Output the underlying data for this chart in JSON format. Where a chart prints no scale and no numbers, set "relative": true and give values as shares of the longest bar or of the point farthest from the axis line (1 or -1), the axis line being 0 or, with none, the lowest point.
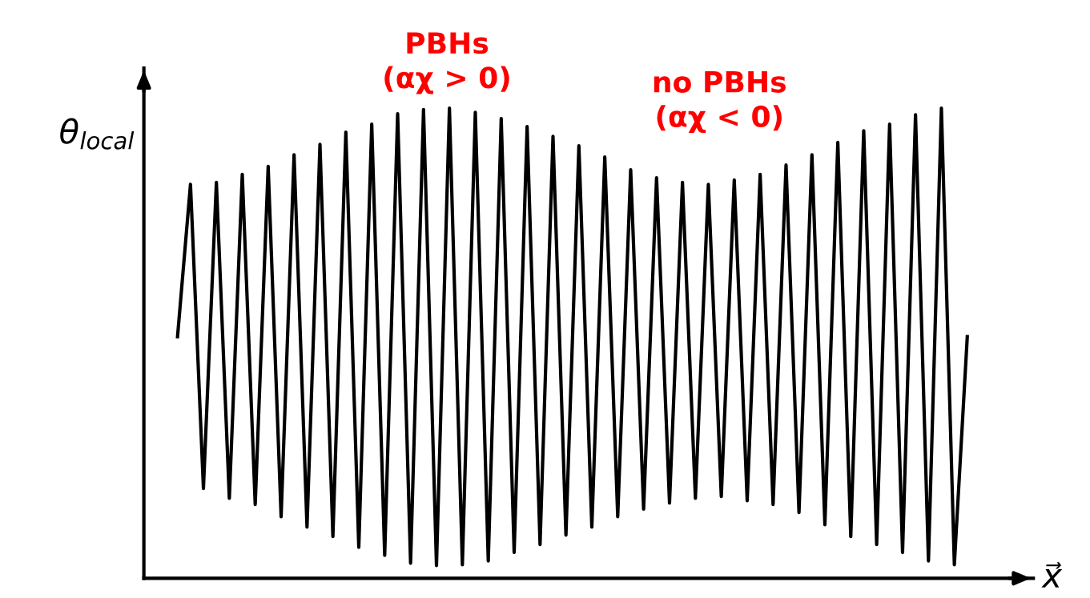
{
  "chart_data": {
    "type": "line",
    "relative": true,
    "ylabel": "θ$_{local}$",
    "xlabel": "x⃗",
    "annotations": [
      "PBHs\n(αχ > 0)",
      "no PBHs\n(αχ < 0)"
    ],
    "categories": [
      null,
      null,
      null,
      null,
      null,
      null,
      null,
      null,
      null,
      null,
      null,
      null,
      null,
      null,
      null,
      null,
      null,
      null,
      null,
      null,
      null,
      null,
      null,
      null,
      null,
      null,
      null,
      null,
      null,
      null,
      null,
      null,
      null,
      null,
      null,
      null,
      null,
      null,
      null,
      null,
      null,
      null,
      null,
      null,
      null,
      null,
      null,
      null,
      null,
      null,
      null,
      null,
      null,
      null,
      null,
      null,
      null,
      null,
      null,
      null,
      null,
      null
    ],
    "series": [
      {
        "color": "#000000",
        "values": [
          0.514,
          0.838,
          0.191,
          0.842,
          0.17,
          0.859,
          0.157,
          0.876,
          0.131,
          0.901,
          0.109,
          0.923,
          0.089,
          0.949,
          0.066,
          0.966,
          0.049,
          0.988,
          0.032,
          0.997,
          0.027,
          1.0,
          0.029,
          0.991,
          0.037,
          0.978,
          0.055,
          0.961,
          0.072,
          0.94,
          0.092,
          0.92,
          0.109,
          0.896,
          0.131,
          0.869,
          0.147,
          0.852,
          0.16,
          0.842,
          0.17,
          0.838,
          0.174,
          0.847,
          0.165,
          0.859,
          0.157,
          0.879,
          0.14,
          0.901,
          0.114,
          0.927,
          0.089,
          0.952,
          0.072,
          0.966,
          0.055,
          0.986,
          0.037,
          1.0,
          0.029,
          0.514
        ]
      }
    ],
    "legend": false
  }
}
